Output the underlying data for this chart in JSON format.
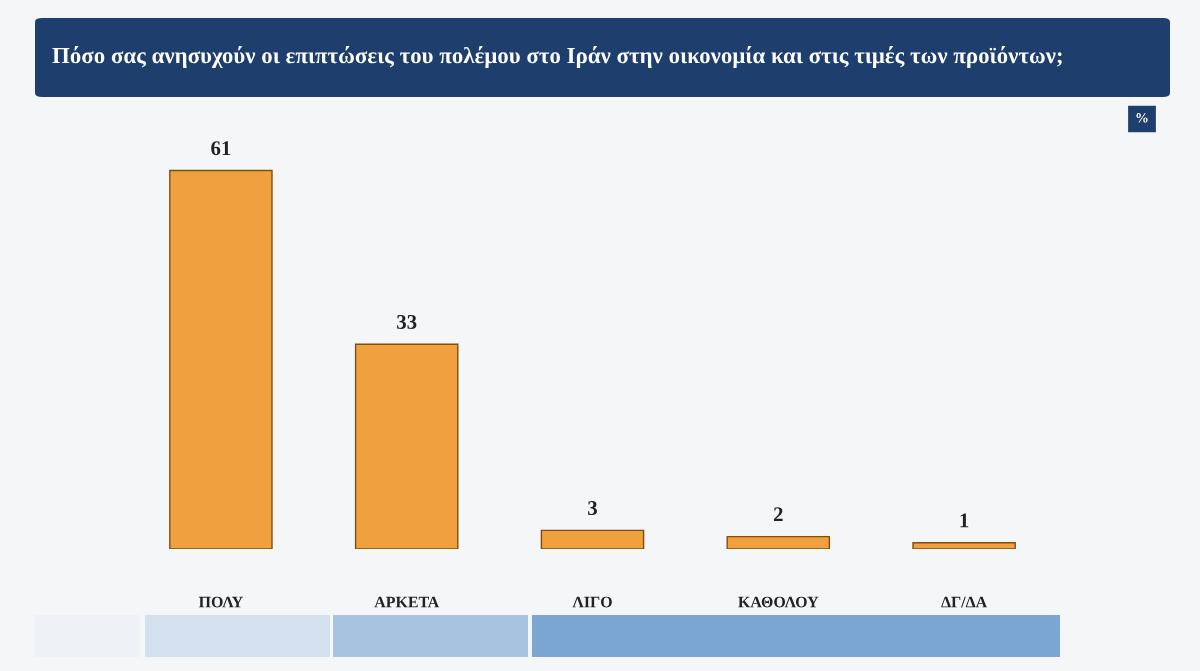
{
  "chart_data": {
    "type": "bar",
    "title": "Πόσο σας ανησυχούν οι επιπτώσεις του πολέμου στο Ιράν στην οικονομία και στις τιμές των προϊόντων;",
    "categories": [
      "ΠΟΛΥ",
      "ΑΡΚΕΤΑ",
      "ΛΙΓΟ",
      "ΚΑΘΟΛΟΥ",
      "ΔΓ/ΔΑ"
    ],
    "values": [
      61,
      33,
      3,
      2,
      1
    ],
    "color": "#f0a03c",
    "data_labels": true,
    "tick_labels": "x",
    "annotations": [
      "%"
    ]
  }
}
